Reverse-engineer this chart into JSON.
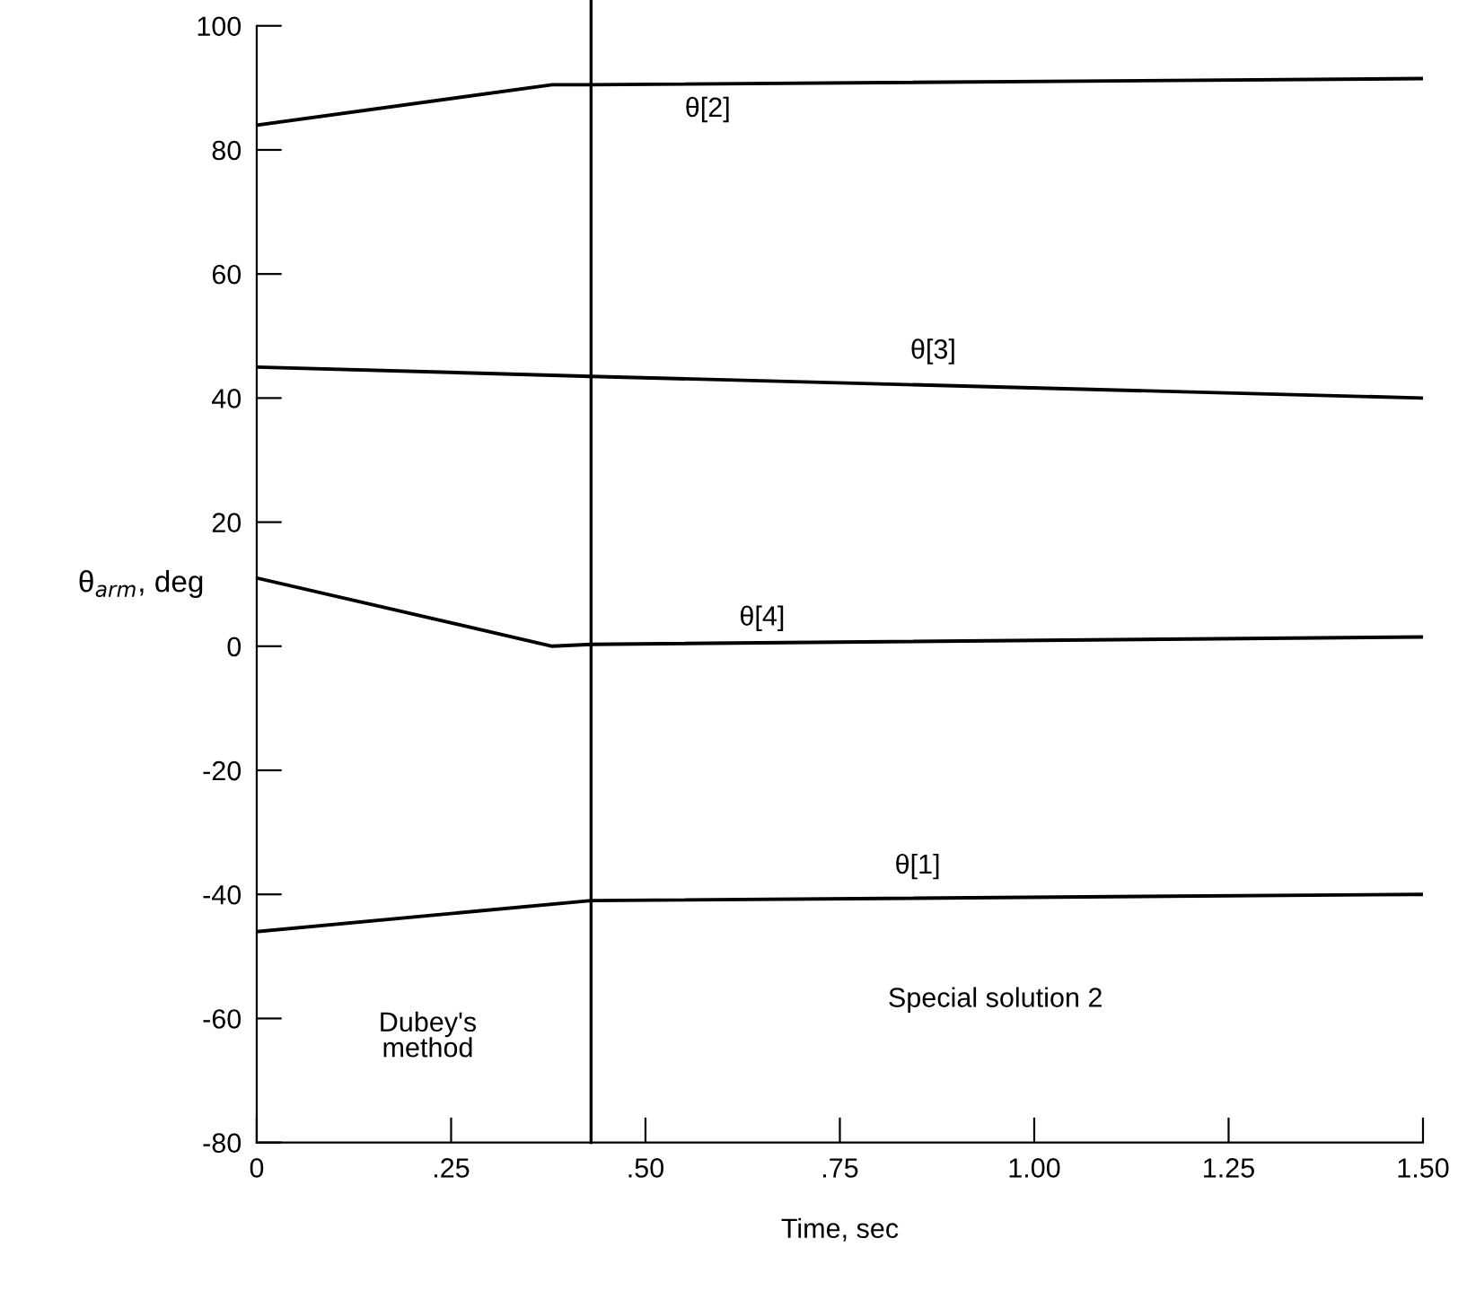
{
  "chart_data": {
    "type": "line",
    "xlabel": "Time, sec",
    "ylabel": "θ$_{arm}$, deg",
    "xlim": [
      0,
      1.5
    ],
    "ylim": [
      -80,
      100
    ],
    "xticks": [
      0,
      {
        "value": 0.25,
        "label": ".25"
      },
      {
        "value": 0.5,
        "label": ".50"
      },
      {
        "value": 0.75,
        "label": ".75"
      },
      {
        "value": 1.0,
        "label": "1.00"
      },
      {
        "value": 1.25,
        "label": "1.25"
      },
      {
        "value": 1.5,
        "label": "1.50"
      }
    ],
    "yticks": [
      -80,
      -60,
      -40,
      -20,
      0,
      20,
      40,
      60,
      80,
      100
    ],
    "grid": false,
    "legend": false,
    "marker": "none",
    "line_style": "solid",
    "series": [
      {
        "name": "θ[2]",
        "color": "#000000",
        "x": [
          0,
          0.38,
          0.43,
          1.5
        ],
        "values": [
          84,
          90.5,
          90.5,
          91.5
        ]
      },
      {
        "name": "θ[3]",
        "color": "#000000",
        "x": [
          0,
          0.43,
          1.5
        ],
        "values": [
          45,
          43.5,
          40
        ]
      },
      {
        "name": "θ[4]",
        "color": "#000000",
        "x": [
          0,
          0.38,
          0.43,
          1.5
        ],
        "values": [
          11,
          0,
          0.3,
          1.5
        ]
      },
      {
        "name": "θ[1]",
        "color": "#000000",
        "x": [
          0,
          0.43,
          1.5
        ],
        "values": [
          -46,
          -41,
          -40
        ]
      }
    ],
    "ref_lines": [
      {
        "axis": "x",
        "value": 0.43,
        "color": "#000000",
        "line_style": "solid"
      }
    ],
    "annotations": [
      "Dubey's\nmethod",
      "Special solution 2"
    ]
  }
}
